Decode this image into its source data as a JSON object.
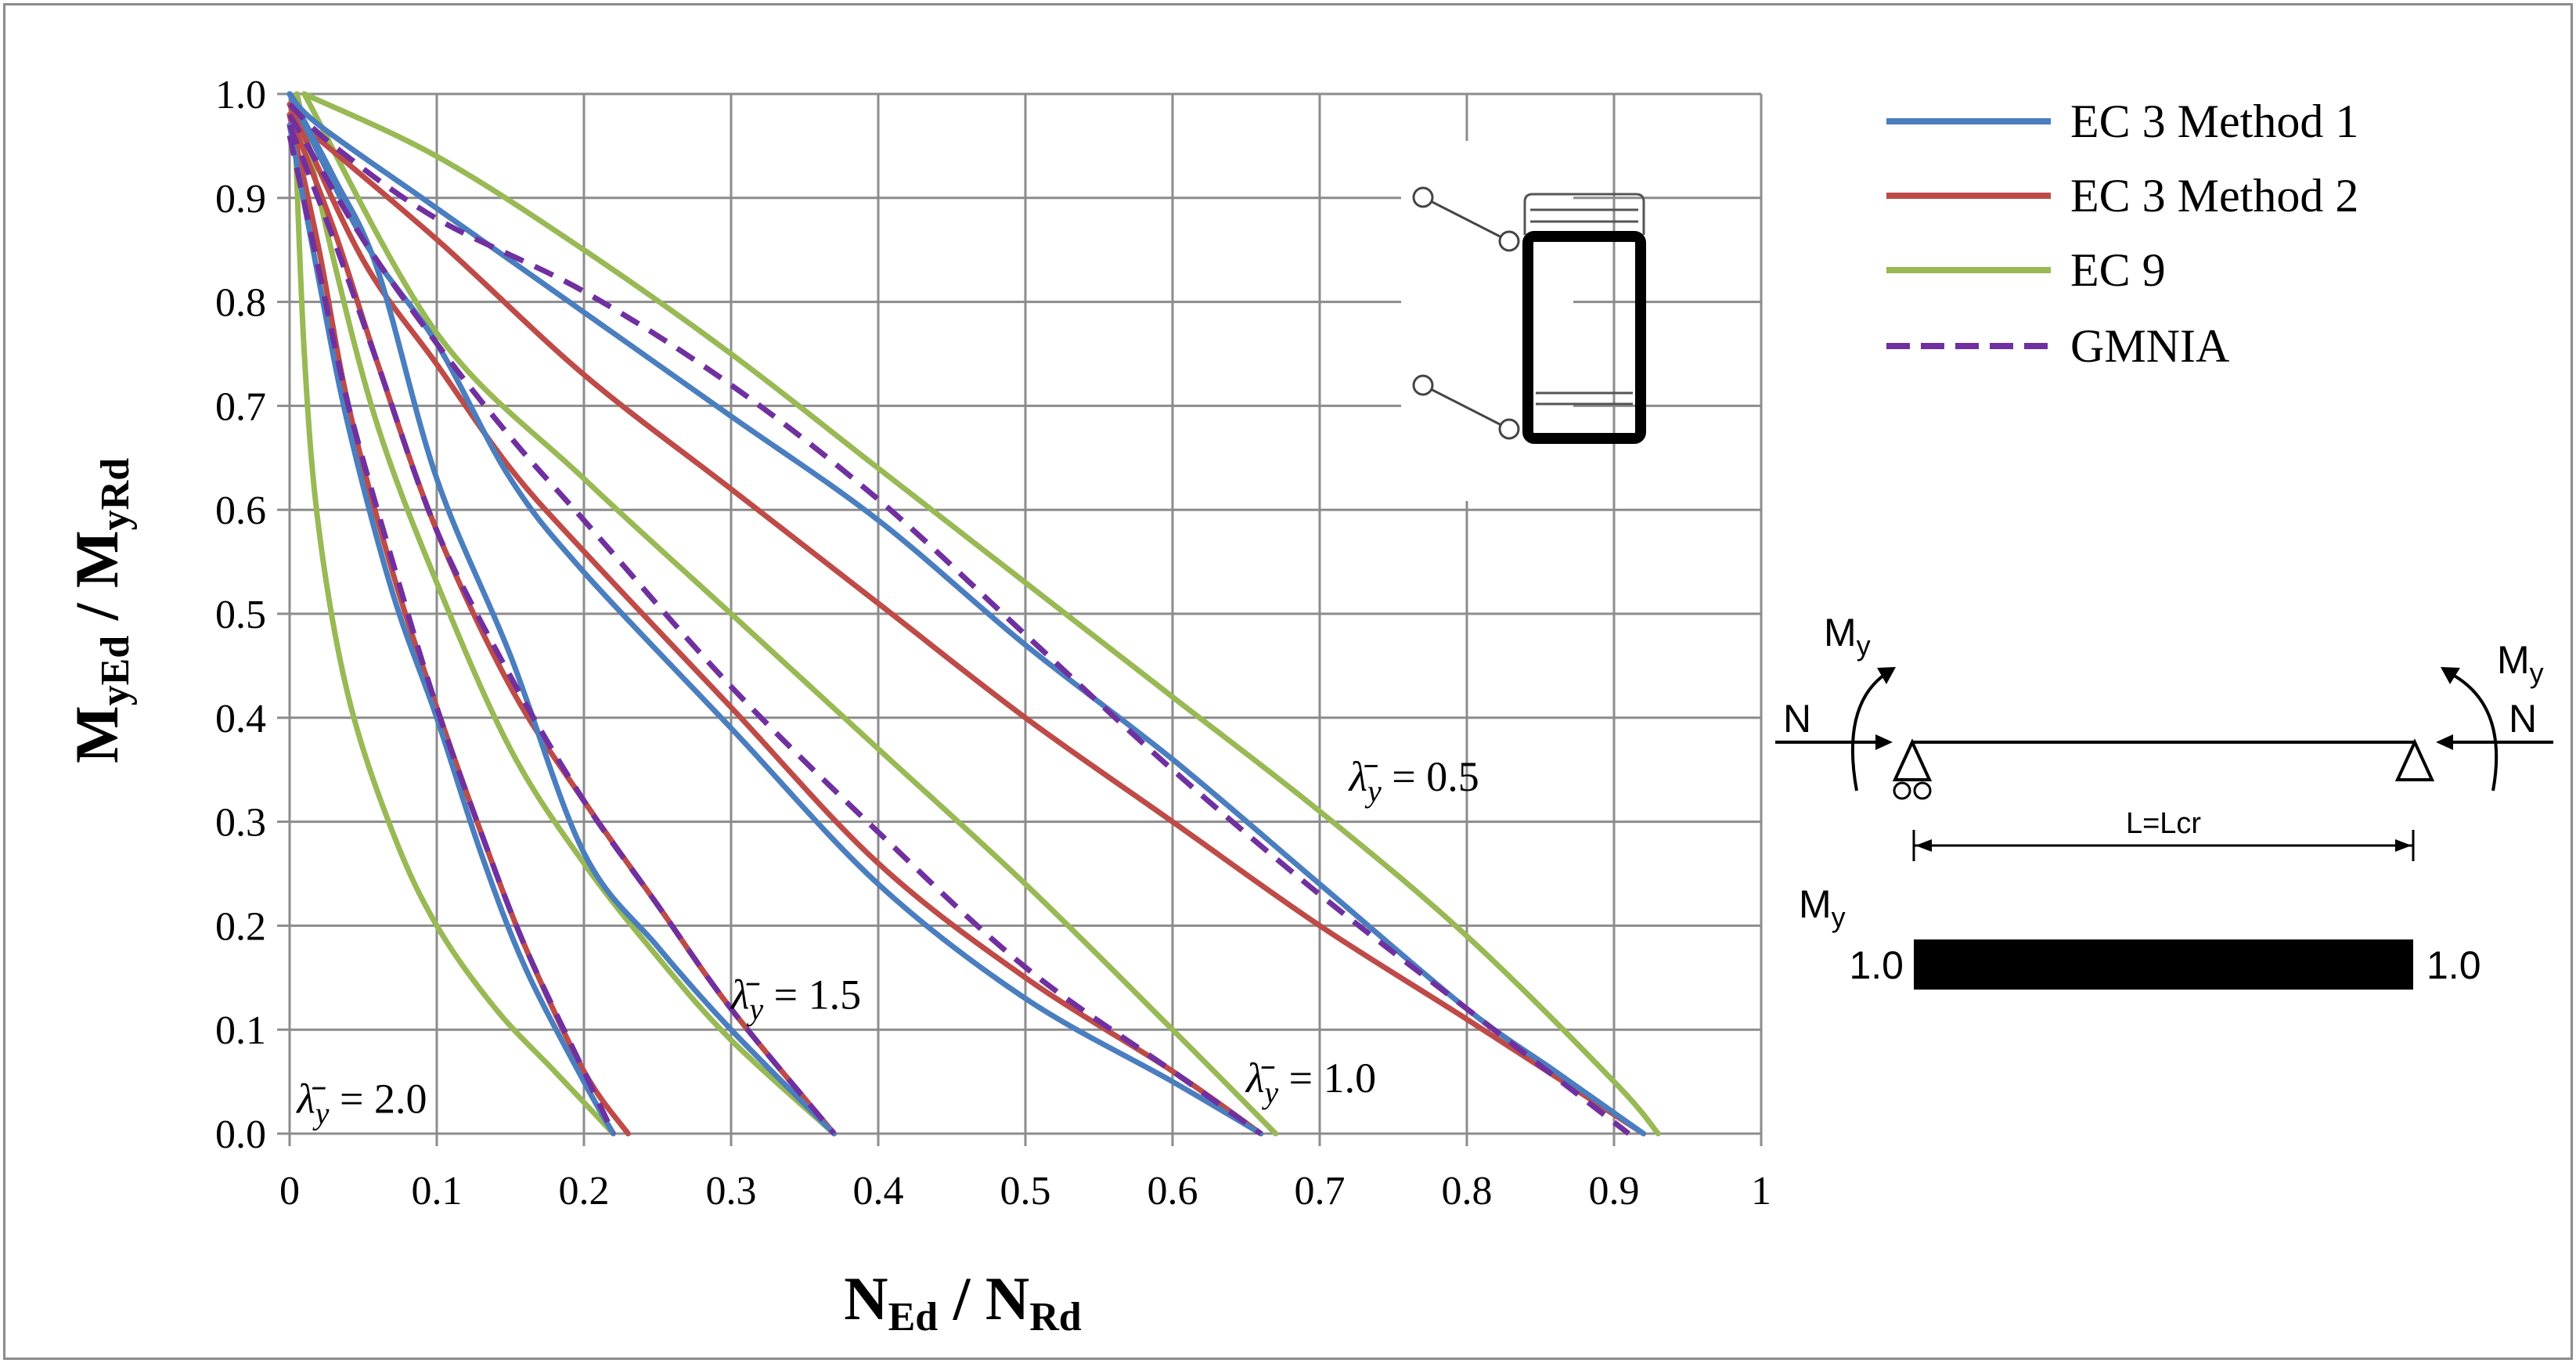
{
  "chart_data": {
    "type": "line",
    "xlabel": {
      "main": "N",
      "sub1": "Ed",
      "sep": " / N",
      "sub2": "Rd"
    },
    "ylabel": {
      "main": "M",
      "sub1": "yEd",
      "sep": " / M",
      "sub2": "yRd"
    },
    "xlim": [
      0,
      1
    ],
    "ylim": [
      0,
      1
    ],
    "x_ticks": [
      "0",
      "0.1",
      "0.2",
      "0.3",
      "0.4",
      "0.5",
      "0.6",
      "0.7",
      "0.8",
      "0.9",
      "1"
    ],
    "y_ticks": [
      "0.0",
      "0.1",
      "0.2",
      "0.3",
      "0.4",
      "0.5",
      "0.6",
      "0.7",
      "0.8",
      "0.9",
      "1.0"
    ],
    "grid": true,
    "legend_position": "right",
    "legend": [
      {
        "label": "EC 3 Method 1",
        "color": "#4a7ebf",
        "dash": false
      },
      {
        "label": "EC 3 Method 2",
        "color": "#be4b48",
        "dash": false
      },
      {
        "label": "EC 9",
        "color": "#98b954",
        "dash": false
      },
      {
        "label": "GMNIA",
        "color": "#7030a0",
        "dash": true
      }
    ],
    "annotations": [
      {
        "symbol": "λ̄",
        "sub": "y",
        "text": " = 0.5",
        "x": 0.72,
        "y": 0.33
      },
      {
        "symbol": "λ̄",
        "sub": "y",
        "text": " = 1.0",
        "x": 0.65,
        "y": 0.04
      },
      {
        "symbol": "λ̄",
        "sub": "y",
        "text": " = 1.5",
        "x": 0.3,
        "y": 0.12
      },
      {
        "symbol": "λ̄",
        "sub": "y",
        "text": " = 2.0",
        "x": 0.005,
        "y": 0.02
      }
    ],
    "series": [
      {
        "name": "EC 3 Method 1",
        "slenderness": "0.5",
        "color": "#4a7ebf",
        "dash": false,
        "x": [
          0,
          0.02,
          0.1,
          0.2,
          0.3,
          0.4,
          0.5,
          0.6,
          0.7,
          0.8,
          0.86,
          0.92
        ],
        "y": [
          1.0,
          0.97,
          0.89,
          0.79,
          0.69,
          0.59,
          0.47,
          0.36,
          0.24,
          0.12,
          0.06,
          0.0
        ]
      },
      {
        "name": "EC 3 Method 2",
        "slenderness": "0.5",
        "color": "#be4b48",
        "dash": false,
        "x": [
          0,
          0.1,
          0.2,
          0.3,
          0.4,
          0.5,
          0.6,
          0.7,
          0.8,
          0.92
        ],
        "y": [
          0.98,
          0.86,
          0.73,
          0.62,
          0.51,
          0.4,
          0.3,
          0.2,
          0.11,
          0.0
        ]
      },
      {
        "name": "EC 9",
        "slenderness": "0.5",
        "color": "#98b954",
        "dash": false,
        "x": [
          0.01,
          0.1,
          0.2,
          0.3,
          0.4,
          0.5,
          0.6,
          0.7,
          0.8,
          0.9,
          0.93
        ],
        "y": [
          1.0,
          0.94,
          0.85,
          0.75,
          0.64,
          0.53,
          0.42,
          0.31,
          0.19,
          0.05,
          0.0
        ]
      },
      {
        "name": "GMNIA",
        "slenderness": "0.5",
        "color": "#7030a0",
        "dash": true,
        "x": [
          0,
          0.03,
          0.1,
          0.2,
          0.3,
          0.4,
          0.5,
          0.6,
          0.7,
          0.8,
          0.91
        ],
        "y": [
          0.99,
          0.95,
          0.88,
          0.81,
          0.72,
          0.61,
          0.48,
          0.35,
          0.23,
          0.12,
          0.0
        ]
      },
      {
        "name": "EC 3 Method 1",
        "slenderness": "1.0",
        "color": "#4a7ebf",
        "dash": false,
        "x": [
          0,
          0.05,
          0.1,
          0.15,
          0.2,
          0.3,
          0.4,
          0.5,
          0.6,
          0.66
        ],
        "y": [
          1.0,
          0.86,
          0.76,
          0.63,
          0.54,
          0.39,
          0.24,
          0.13,
          0.05,
          0.0
        ]
      },
      {
        "name": "EC 3 Method 2",
        "slenderness": "1.0",
        "color": "#be4b48",
        "dash": false,
        "x": [
          0,
          0.05,
          0.1,
          0.15,
          0.2,
          0.3,
          0.4,
          0.5,
          0.6,
          0.66
        ],
        "y": [
          0.99,
          0.84,
          0.74,
          0.64,
          0.56,
          0.41,
          0.26,
          0.15,
          0.06,
          0.0
        ]
      },
      {
        "name": "EC 9",
        "slenderness": "1.0",
        "color": "#98b954",
        "dash": false,
        "x": [
          0.01,
          0.1,
          0.2,
          0.3,
          0.4,
          0.5,
          0.6,
          0.67
        ],
        "y": [
          1.0,
          0.77,
          0.63,
          0.5,
          0.37,
          0.24,
          0.1,
          0.0
        ]
      },
      {
        "name": "GMNIA",
        "slenderness": "1.0",
        "color": "#7030a0",
        "dash": true,
        "x": [
          0,
          0.05,
          0.1,
          0.15,
          0.2,
          0.3,
          0.4,
          0.5,
          0.6,
          0.66
        ],
        "y": [
          0.98,
          0.86,
          0.76,
          0.67,
          0.59,
          0.43,
          0.29,
          0.16,
          0.06,
          0.0
        ]
      },
      {
        "name": "EC 3 Method 1",
        "slenderness": "1.5",
        "color": "#4a7ebf",
        "dash": false,
        "x": [
          0,
          0.03,
          0.06,
          0.1,
          0.15,
          0.2,
          0.25,
          0.3,
          0.37
        ],
        "y": [
          1.0,
          0.92,
          0.83,
          0.63,
          0.46,
          0.27,
          0.18,
          0.1,
          0.0
        ]
      },
      {
        "name": "EC 3 Method 2",
        "slenderness": "1.5",
        "color": "#be4b48",
        "dash": false,
        "x": [
          0,
          0.03,
          0.06,
          0.1,
          0.15,
          0.2,
          0.25,
          0.3,
          0.37
        ],
        "y": [
          0.98,
          0.87,
          0.74,
          0.58,
          0.43,
          0.32,
          0.22,
          0.12,
          0.0
        ]
      },
      {
        "name": "EC 9",
        "slenderness": "1.5",
        "color": "#98b954",
        "dash": false,
        "x": [
          0.005,
          0.03,
          0.06,
          0.1,
          0.15,
          0.2,
          0.25,
          0.3,
          0.37
        ],
        "y": [
          1.0,
          0.84,
          0.68,
          0.53,
          0.37,
          0.26,
          0.17,
          0.09,
          0.0
        ]
      },
      {
        "name": "GMNIA",
        "slenderness": "1.5",
        "color": "#7030a0",
        "dash": true,
        "x": [
          0,
          0.03,
          0.06,
          0.1,
          0.15,
          0.2,
          0.25,
          0.3,
          0.37
        ],
        "y": [
          0.97,
          0.86,
          0.74,
          0.58,
          0.44,
          0.32,
          0.22,
          0.12,
          0.0
        ]
      },
      {
        "name": "EC 3 Method 1",
        "slenderness": "2.0",
        "color": "#4a7ebf",
        "dash": false,
        "x": [
          0,
          0.02,
          0.04,
          0.07,
          0.1,
          0.13,
          0.16,
          0.2,
          0.22
        ],
        "y": [
          0.97,
          0.82,
          0.68,
          0.52,
          0.4,
          0.27,
          0.16,
          0.05,
          0.0
        ]
      },
      {
        "name": "EC 3 Method 2",
        "slenderness": "2.0",
        "color": "#be4b48",
        "dash": false,
        "x": [
          0,
          0.02,
          0.04,
          0.07,
          0.1,
          0.13,
          0.16,
          0.2,
          0.23
        ],
        "y": [
          0.98,
          0.85,
          0.7,
          0.54,
          0.41,
          0.29,
          0.18,
          0.06,
          0.0
        ]
      },
      {
        "name": "EC 9",
        "slenderness": "2.0",
        "color": "#98b954",
        "dash": false,
        "x": [
          0.003,
          0.01,
          0.02,
          0.04,
          0.07,
          0.1,
          0.14,
          0.18,
          0.22
        ],
        "y": [
          0.99,
          0.75,
          0.58,
          0.42,
          0.29,
          0.2,
          0.12,
          0.06,
          0.0
        ]
      },
      {
        "name": "GMNIA",
        "slenderness": "2.0",
        "color": "#7030a0",
        "dash": true,
        "x": [
          0,
          0.02,
          0.04,
          0.07,
          0.1,
          0.13,
          0.16,
          0.2,
          0.22
        ],
        "y": [
          0.96,
          0.83,
          0.7,
          0.55,
          0.41,
          0.29,
          0.18,
          0.06,
          0.0
        ]
      }
    ]
  },
  "section_inset": {
    "label": "cross-section"
  },
  "beam_diagram": {
    "moment_label": "M",
    "moment_sub": "y",
    "axial_label": "N",
    "length_label": "L=Lcr",
    "diagram_label": "M",
    "diagram_sub": "y",
    "left_value": "1.0",
    "right_value": "1.0"
  }
}
